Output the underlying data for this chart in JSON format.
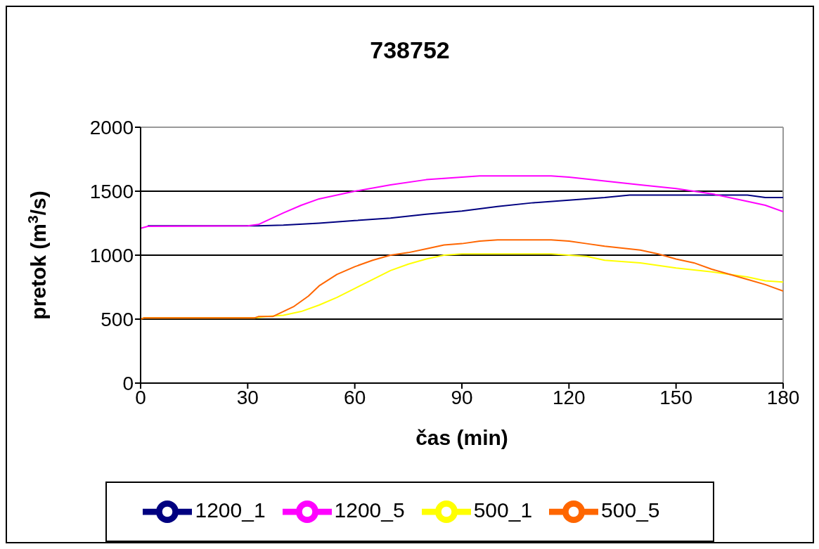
{
  "chart_data": {
    "type": "line",
    "title": "738752",
    "xlabel": "čas (min)",
    "ylabel": "pretok (m$^{3}$/s)",
    "xlim": [
      0,
      180
    ],
    "xticks": [
      0,
      30,
      60,
      90,
      120,
      150,
      180
    ],
    "ylim": [
      0,
      2000
    ],
    "yticks": [
      0,
      500,
      1000,
      1500,
      2000
    ],
    "grid": "y",
    "legend": "bottom",
    "marker": "none",
    "line_style": "solid",
    "series": [
      {
        "name": "1200_1",
        "color": "#000080",
        "x": [
          2,
          33,
          40,
          50,
          60,
          70,
          80,
          90,
          100,
          110,
          120,
          130,
          137,
          170,
          175,
          180
        ],
        "values": [
          1230,
          1230,
          1235,
          1250,
          1270,
          1290,
          1320,
          1345,
          1380,
          1410,
          1430,
          1450,
          1470,
          1470,
          1450,
          1450
        ]
      },
      {
        "name": "1200_5",
        "color": "#ff00ff",
        "x": [
          0,
          2,
          30,
          33,
          40,
          45,
          50,
          55,
          60,
          70,
          80,
          90,
          95,
          115,
          120,
          130,
          140,
          150,
          160,
          170,
          175,
          180
        ],
        "values": [
          1210,
          1225,
          1230,
          1240,
          1330,
          1390,
          1440,
          1470,
          1500,
          1550,
          1590,
          1610,
          1620,
          1620,
          1610,
          1580,
          1550,
          1520,
          1480,
          1420,
          1390,
          1340
        ]
      },
      {
        "name": "500_1",
        "color": "#ffff00",
        "x": [
          0,
          1,
          32,
          35,
          40,
          45,
          50,
          55,
          60,
          65,
          70,
          75,
          80,
          85,
          90,
          115,
          120,
          125,
          130,
          140,
          150,
          160,
          170,
          175,
          180
        ],
        "values": [
          500,
          510,
          510,
          520,
          530,
          560,
          610,
          670,
          740,
          810,
          880,
          930,
          970,
          1000,
          1010,
          1010,
          1000,
          990,
          960,
          940,
          900,
          870,
          830,
          800,
          790
        ]
      },
      {
        "name": "500_5",
        "color": "#ff6600",
        "x": [
          0,
          1,
          32,
          33,
          37,
          40,
          43,
          47,
          50,
          55,
          60,
          65,
          70,
          75,
          80,
          85,
          90,
          95,
          100,
          115,
          120,
          125,
          130,
          140,
          145,
          150,
          155,
          160,
          165,
          170,
          175,
          180
        ],
        "values": [
          500,
          510,
          510,
          520,
          520,
          560,
          600,
          680,
          760,
          850,
          910,
          960,
          1000,
          1020,
          1050,
          1080,
          1090,
          1110,
          1120,
          1120,
          1110,
          1090,
          1070,
          1040,
          1010,
          970,
          940,
          890,
          850,
          810,
          770,
          720
        ]
      }
    ]
  }
}
